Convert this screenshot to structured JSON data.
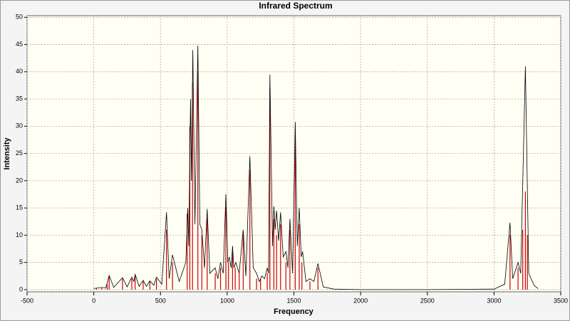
{
  "chart_data": {
    "type": "spectrum",
    "title": "Infrared Spectrum",
    "x_label": "Frequency",
    "y_label": "Intensity",
    "xlim": [
      -500,
      3500
    ],
    "ylim": [
      -0.4,
      50.3
    ],
    "xticks": [
      -500,
      0,
      500,
      1000,
      1500,
      2000,
      2500,
      3000,
      3500
    ],
    "yticks": [
      0,
      5,
      10,
      15,
      20,
      25,
      30,
      35,
      40,
      45,
      50
    ],
    "grid": true,
    "line": {
      "color": "#000000",
      "x": [
        0,
        60,
        90,
        115,
        150,
        215,
        250,
        285,
        300,
        310,
        340,
        370,
        395,
        420,
        450,
        470,
        510,
        545,
        565,
        590,
        640,
        690,
        705,
        712,
        725,
        732,
        742,
        758,
        780,
        795,
        810,
        830,
        850,
        870,
        910,
        930,
        950,
        970,
        990,
        1005,
        1015,
        1030,
        1040,
        1050,
        1065,
        1090,
        1120,
        1140,
        1170,
        1195,
        1220,
        1240,
        1260,
        1280,
        1300,
        1310,
        1320,
        1340,
        1350,
        1360,
        1370,
        1385,
        1400,
        1420,
        1440,
        1455,
        1470,
        1490,
        1510,
        1525,
        1540,
        1555,
        1565,
        1590,
        1620,
        1650,
        1680,
        1720,
        1800,
        2000,
        2500,
        3000,
        3080,
        3120,
        3140,
        3180,
        3200,
        3235,
        3260,
        3300,
        3330
      ],
      "y": [
        0.2,
        0.4,
        0.3,
        2.6,
        0.4,
        2.2,
        0.5,
        2.3,
        1.5,
        2.8,
        0.6,
        1.7,
        0.6,
        1.6,
        0.8,
        2.3,
        1,
        14.2,
        2,
        6.4,
        1.5,
        5,
        15,
        8,
        35,
        20,
        44,
        12,
        44.8,
        12,
        11,
        4,
        14.8,
        3,
        4,
        2,
        5,
        3,
        17.5,
        5,
        6,
        4,
        8,
        4,
        5,
        3,
        11,
        2.5,
        24.5,
        4,
        3,
        1.5,
        2.5,
        2,
        4,
        3,
        39.5,
        8,
        15.3,
        11,
        14.5,
        9,
        14.2,
        6,
        7,
        4,
        13,
        3,
        30.8,
        8,
        15,
        6,
        7,
        1.5,
        2,
        1.5,
        4.8,
        0.5,
        0.1,
        0,
        0,
        0.1,
        1,
        12.3,
        2,
        5,
        3,
        41,
        3,
        0.8,
        0.2
      ]
    },
    "sticks": {
      "color": "#cc0000",
      "x": [
        20,
        60,
        100,
        115,
        215,
        285,
        310,
        370,
        420,
        470,
        545,
        590,
        700,
        720,
        740,
        780,
        810,
        850,
        910,
        950,
        990,
        1010,
        1040,
        1060,
        1090,
        1120,
        1170,
        1220,
        1250,
        1300,
        1320,
        1350,
        1370,
        1400,
        1440,
        1470,
        1510,
        1540,
        1560,
        1620,
        1680,
        3120,
        3180,
        3215,
        3235,
        3250
      ],
      "values": [
        0.3,
        0.3,
        1,
        2.5,
        2,
        2,
        2.5,
        1.5,
        1.5,
        2,
        11,
        5,
        14,
        30,
        38,
        40,
        10,
        13,
        3,
        4,
        15,
        5,
        7,
        4,
        3,
        10,
        22,
        2,
        2,
        3,
        37,
        13,
        10,
        12,
        5,
        11,
        28,
        12,
        5,
        1.5,
        4,
        10,
        4,
        11,
        18,
        10
      ]
    }
  }
}
